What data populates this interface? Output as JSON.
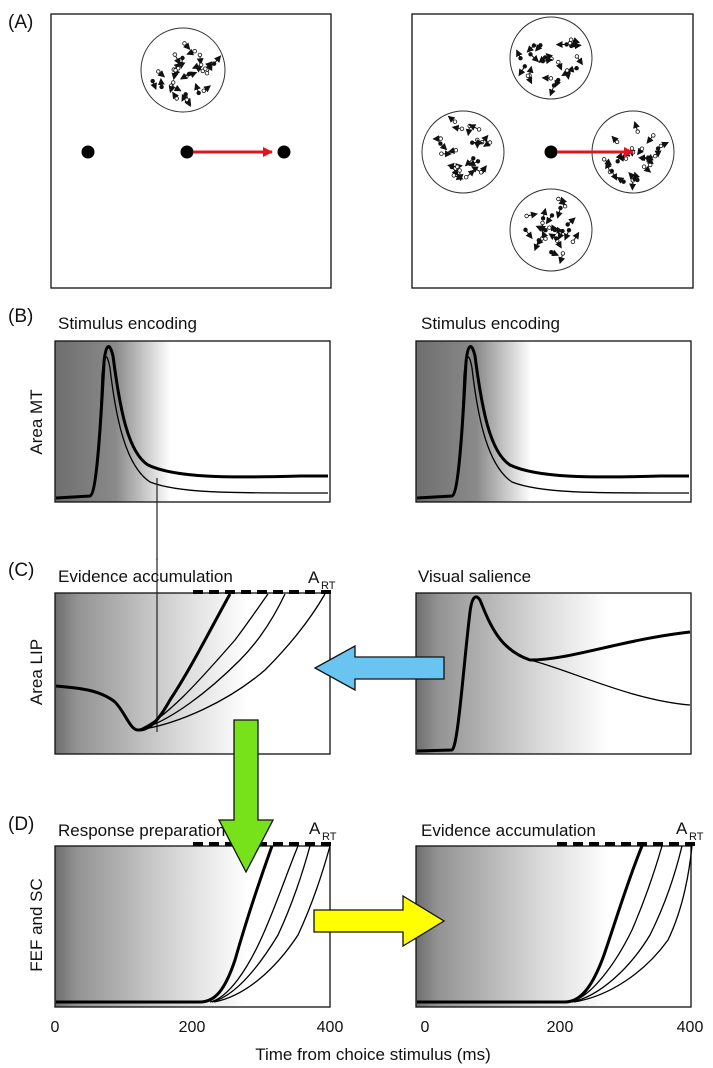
{
  "panel_letters": {
    "a": "(A)",
    "b": "(B)",
    "c": "(C)",
    "d": "(D)"
  },
  "row_b": {
    "left_title": "Stimulus encoding",
    "right_title": "Stimulus encoding",
    "ylabel": "Area MT"
  },
  "row_c": {
    "left_title": "Evidence accumulation",
    "right_title": "Visual salience",
    "ylabel": "Area LIP",
    "threshold_base": "A",
    "threshold_sub": "RT"
  },
  "row_d": {
    "left_title": "Response preparation",
    "right_title": "Evidence accumulation",
    "ylabel": "FEF and SC",
    "threshold_base": "A",
    "threshold_sub": "RT"
  },
  "x_axis": {
    "ticks": [
      "0",
      "200",
      "400"
    ],
    "label": "Time from choice stimulus (ms)"
  },
  "colors": {
    "red_arrow": "#e0141e",
    "blue_arrow": "#6ac4f2",
    "green_arrow": "#77e21a",
    "yellow_arrow": "#ffff00",
    "shade_dark": "#6a6a6a"
  }
}
